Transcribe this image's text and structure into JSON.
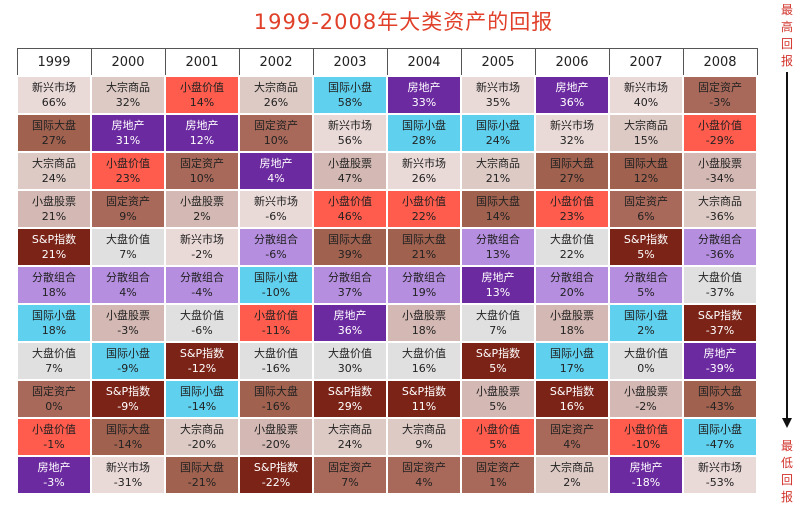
{
  "title": "1999-2008年大类资产的回报",
  "side_high": "最高回报",
  "side_low": "最低回报",
  "colors": {
    "新兴市场": "#e9d9d7",
    "大宗商品": "#ddcac5",
    "小盘价值": "#ff5c4d",
    "固定资产": "#a9695a",
    "国际小盘": "#5fd0ee",
    "房地产": "#6c2aa0",
    "国际大盘": "#a0614f",
    "小盘股票": "#d3b8b3",
    "S&P指数": "#7b2317",
    "大盘价值": "#e0e0e0",
    "分散组合": "#b58ee0"
  },
  "text_colors": {
    "房地产": "#ffffff",
    "S&P指数": "#ffffff"
  },
  "chart_data": {
    "type": "table",
    "title": "1999-2008年大类资产的回报",
    "years": [
      "1999",
      "2000",
      "2001",
      "2002",
      "2003",
      "2004",
      "2005",
      "2006",
      "2007",
      "2008"
    ],
    "columns": [
      [
        [
          "新兴市场",
          "66%"
        ],
        [
          "国际大盘",
          "27%"
        ],
        [
          "大宗商品",
          "24%"
        ],
        [
          "小盘股票",
          "21%"
        ],
        [
          "S&P指数",
          "21%"
        ],
        [
          "分散组合",
          "18%"
        ],
        [
          "国际小盘",
          "18%"
        ],
        [
          "大盘价值",
          "7%"
        ],
        [
          "固定资产",
          "0%"
        ],
        [
          "小盘价值",
          "-1%"
        ],
        [
          "房地产",
          "-3%"
        ]
      ],
      [
        [
          "大宗商品",
          "32%"
        ],
        [
          "房地产",
          "31%"
        ],
        [
          "小盘价值",
          "23%"
        ],
        [
          "固定资产",
          "9%"
        ],
        [
          "大盘价值",
          "7%"
        ],
        [
          "分散组合",
          "4%"
        ],
        [
          "小盘股票",
          "-3%"
        ],
        [
          "国际小盘",
          "-9%"
        ],
        [
          "S&P指数",
          "-9%"
        ],
        [
          "国际大盘",
          "-14%"
        ],
        [
          "新兴市场",
          "-31%"
        ]
      ],
      [
        [
          "小盘价值",
          "14%"
        ],
        [
          "房地产",
          "12%"
        ],
        [
          "固定资产",
          "10%"
        ],
        [
          "小盘股票",
          "2%"
        ],
        [
          "新兴市场",
          "-2%"
        ],
        [
          "分散组合",
          "-4%"
        ],
        [
          "大盘价值",
          "-6%"
        ],
        [
          "S&P指数",
          "-12%"
        ],
        [
          "国际小盘",
          "-14%"
        ],
        [
          "大宗商品",
          "-20%"
        ],
        [
          "国际大盘",
          "-21%"
        ]
      ],
      [
        [
          "大宗商品",
          "26%"
        ],
        [
          "固定资产",
          "10%"
        ],
        [
          "房地产",
          "4%"
        ],
        [
          "新兴市场",
          "-6%"
        ],
        [
          "分散组合",
          "-6%"
        ],
        [
          "国际小盘",
          "-10%"
        ],
        [
          "小盘价值",
          "-11%"
        ],
        [
          "大盘价值",
          "-16%"
        ],
        [
          "国际大盘",
          "-16%"
        ],
        [
          "小盘股票",
          "-20%"
        ],
        [
          "S&P指数",
          "-22%"
        ]
      ],
      [
        [
          "国际小盘",
          "58%"
        ],
        [
          "新兴市场",
          "56%"
        ],
        [
          "小盘股票",
          "47%"
        ],
        [
          "小盘价值",
          "46%"
        ],
        [
          "国际大盘",
          "39%"
        ],
        [
          "分散组合",
          "37%"
        ],
        [
          "房地产",
          "36%"
        ],
        [
          "大盘价值",
          "30%"
        ],
        [
          "S&P指数",
          "29%"
        ],
        [
          "大宗商品",
          "24%"
        ],
        [
          "固定资产",
          "7%"
        ]
      ],
      [
        [
          "房地产",
          "33%"
        ],
        [
          "国际小盘",
          "28%"
        ],
        [
          "新兴市场",
          "26%"
        ],
        [
          "小盘价值",
          "22%"
        ],
        [
          "国际大盘",
          "21%"
        ],
        [
          "分散组合",
          "19%"
        ],
        [
          "小盘股票",
          "18%"
        ],
        [
          "大盘价值",
          "16%"
        ],
        [
          "S&P指数",
          "11%"
        ],
        [
          "大宗商品",
          "9%"
        ],
        [
          "固定资产",
          "4%"
        ]
      ],
      [
        [
          "新兴市场",
          "35%"
        ],
        [
          "国际小盘",
          "24%"
        ],
        [
          "大宗商品",
          "21%"
        ],
        [
          "国际大盘",
          "14%"
        ],
        [
          "分散组合",
          "13%"
        ],
        [
          "房地产",
          "13%"
        ],
        [
          "大盘价值",
          "7%"
        ],
        [
          "S&P指数",
          "5%"
        ],
        [
          "小盘股票",
          "5%"
        ],
        [
          "小盘价值",
          "5%"
        ],
        [
          "固定资产",
          "1%"
        ]
      ],
      [
        [
          "房地产",
          "36%"
        ],
        [
          "新兴市场",
          "32%"
        ],
        [
          "国际大盘",
          "27%"
        ],
        [
          "小盘价值",
          "23%"
        ],
        [
          "大盘价值",
          "22%"
        ],
        [
          "分散组合",
          "20%"
        ],
        [
          "小盘股票",
          "18%"
        ],
        [
          "国际小盘",
          "17%"
        ],
        [
          "S&P指数",
          "16%"
        ],
        [
          "固定资产",
          "4%"
        ],
        [
          "大宗商品",
          "2%"
        ]
      ],
      [
        [
          "新兴市场",
          "40%"
        ],
        [
          "大宗商品",
          "15%"
        ],
        [
          "国际大盘",
          "12%"
        ],
        [
          "固定资产",
          "6%"
        ],
        [
          "S&P指数",
          "5%"
        ],
        [
          "分散组合",
          "5%"
        ],
        [
          "国际小盘",
          "2%"
        ],
        [
          "大盘价值",
          "0%"
        ],
        [
          "小盘股票",
          "-2%"
        ],
        [
          "小盘价值",
          "-10%"
        ],
        [
          "房地产",
          "-18%"
        ]
      ],
      [
        [
          "固定资产",
          "-3%"
        ],
        [
          "小盘价值",
          "-29%"
        ],
        [
          "小盘股票",
          "-34%"
        ],
        [
          "大宗商品",
          "-36%"
        ],
        [
          "分散组合",
          "-36%"
        ],
        [
          "大盘价值",
          "-37%"
        ],
        [
          "S&P指数",
          "-37%"
        ],
        [
          "房地产",
          "-39%"
        ],
        [
          "国际大盘",
          "-43%"
        ],
        [
          "国际小盘",
          "-47%"
        ],
        [
          "新兴市场",
          "-53%"
        ]
      ]
    ]
  }
}
